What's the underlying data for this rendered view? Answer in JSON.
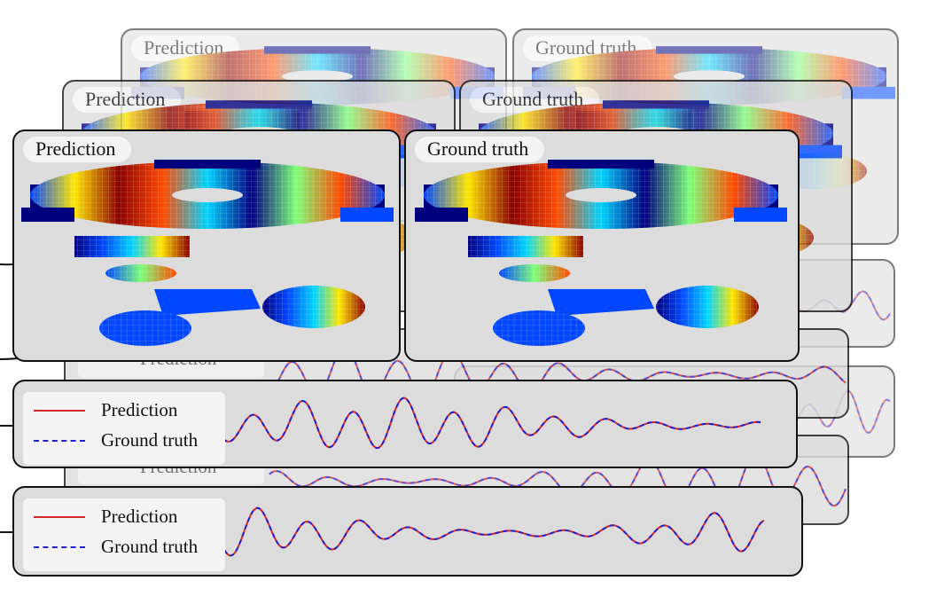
{
  "figure": {
    "prediction_label": "Prediction",
    "ground_truth_label": "Ground truth"
  },
  "legend": {
    "prediction": "Prediction",
    "ground_truth": "Ground truth",
    "prediction_color": "#d62728",
    "ground_truth_color": "#1f1fd6"
  },
  "colors": {
    "panel_bg": "#dcdcdc",
    "panel_border": "#111111",
    "colormap": [
      "#00007f",
      "#0047ff",
      "#00d4ff",
      "#7dff7a",
      "#ffe600",
      "#ff4a00",
      "#8b0000"
    ]
  }
}
